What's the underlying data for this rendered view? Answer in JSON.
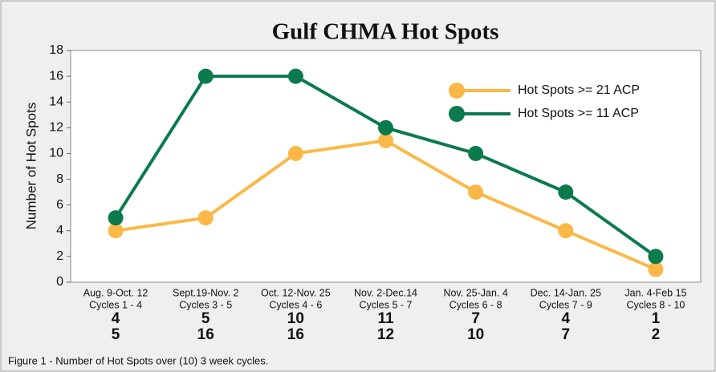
{
  "chart_data": {
    "type": "line",
    "title": "Gulf CHMA Hot Spots",
    "ylabel": "Number of Hot Spots",
    "caption": "Figure 1 - Number of Hot Spots over (10) 3 week cycles.",
    "categories": [
      [
        "Aug. 9-Oct. 12",
        "Cycles 1 - 4"
      ],
      [
        "Sept.19-Nov. 2",
        "Cycles 3 - 5"
      ],
      [
        "Oct. 12-Nov. 25",
        "Cycles 4 - 6"
      ],
      [
        "Nov. 2-Dec.14",
        "Cycles 5 - 7"
      ],
      [
        "Nov. 25-Jan. 4",
        "Cycles 6 - 8"
      ],
      [
        "Dec. 14-Jan. 25",
        "Cycles 7 - 9"
      ],
      [
        "Jan. 4-Feb 15",
        "Cycles 8 - 10"
      ]
    ],
    "series": [
      {
        "name": "Hot Spots >= 21 ACP",
        "color": "#fbb847",
        "values": [
          4,
          5,
          10,
          11,
          7,
          4,
          1
        ]
      },
      {
        "name": "Hot Spots >= 11 ACP",
        "color": "#0b7a4d",
        "values": [
          5,
          16,
          16,
          12,
          10,
          7,
          2
        ]
      }
    ],
    "ylim": [
      0,
      18
    ],
    "yticks": [
      0,
      2,
      4,
      6,
      8,
      10,
      12,
      14,
      16,
      18
    ],
    "legend": "upper right",
    "grid": false
  }
}
